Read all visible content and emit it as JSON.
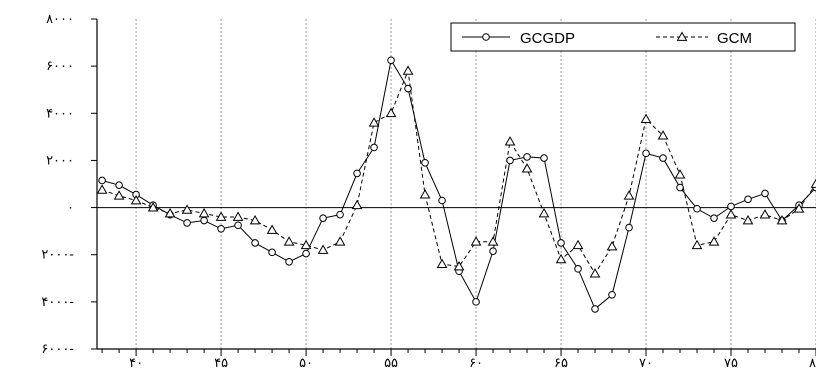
{
  "chart_data": {
    "type": "line",
    "title": "",
    "xlabel": "",
    "ylabel": "",
    "x": [
      38,
      39,
      40,
      41,
      42,
      43,
      44,
      45,
      46,
      47,
      48,
      49,
      50,
      51,
      52,
      53,
      54,
      55,
      56,
      57,
      58,
      59,
      60,
      61,
      62,
      63,
      64,
      65,
      66,
      67,
      68,
      69,
      70,
      71,
      72,
      73,
      74,
      75,
      76,
      77,
      78,
      79,
      80
    ],
    "xlim": [
      37.7,
      80
    ],
    "ylim": [
      -6000,
      8000
    ],
    "x_ticks": [
      40,
      45,
      50,
      55,
      60,
      65,
      70,
      75,
      80
    ],
    "x_tick_labels": [
      "۴۰",
      "۴۵",
      "۵۰",
      "۵۵",
      "۶۰",
      "۶۵",
      "۷۰",
      "۷۵",
      "۸۰"
    ],
    "y_ticks": [
      8000,
      6000,
      4000,
      2000,
      0,
      -2000,
      -4000,
      -6000
    ],
    "y_tick_labels": [
      "۸۰۰۰",
      "۶۰۰۰",
      "۴۰۰۰",
      "۲۰۰۰",
      "۰",
      "۲۰۰۰-",
      "۴۰۰۰-",
      "۶۰۰۰-"
    ],
    "grid": {
      "vertical": true,
      "horizontal": false
    },
    "zero_line": true,
    "legend_position": "top-right",
    "series": [
      {
        "name": "GCGDP",
        "style": "solid",
        "marker": "circle",
        "color": "#000000",
        "values": [
          1150,
          950,
          550,
          100,
          -300,
          -650,
          -550,
          -900,
          -750,
          -1500,
          -1900,
          -2300,
          -1950,
          -450,
          -300,
          1450,
          2550,
          6250,
          5050,
          1900,
          300,
          -2700,
          -4000,
          -1850,
          2000,
          2150,
          2100,
          -1500,
          -2600,
          -4300,
          -3700,
          -850,
          2300,
          2100,
          850,
          -50,
          -450,
          50,
          350,
          600,
          -550,
          100,
          850
        ]
      },
      {
        "name": "GCM",
        "style": "dashed",
        "marker": "triangle",
        "color": "#000000",
        "values": [
          750,
          500,
          300,
          0,
          -250,
          -100,
          -250,
          -400,
          -400,
          -550,
          -950,
          -1450,
          -1600,
          -1800,
          -1450,
          100,
          3600,
          4000,
          5800,
          550,
          -2400,
          -2500,
          -1450,
          -1450,
          2800,
          1650,
          -250,
          -2200,
          -1600,
          -2800,
          -1650,
          500,
          3750,
          3050,
          1400,
          -1600,
          -1450,
          -300,
          -550,
          -300,
          -550,
          -50,
          1000
        ]
      }
    ]
  }
}
